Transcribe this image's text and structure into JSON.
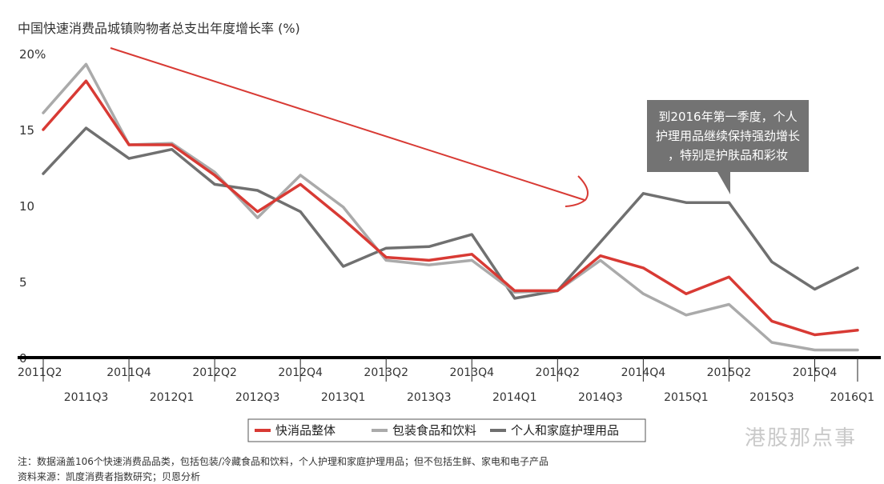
{
  "chart_data": {
    "type": "line",
    "title": "中国快速消费品城镇购物者总支出年度增长率 (%)",
    "categories": [
      "2011Q2",
      "2011Q3",
      "2011Q4",
      "2012Q1",
      "2012Q2",
      "2012Q3",
      "2012Q4",
      "2013Q1",
      "2013Q2",
      "2013Q3",
      "2013Q4",
      "2014Q1",
      "2014Q2",
      "2014Q3",
      "2014Q4",
      "2015Q1",
      "2015Q2",
      "2015Q3",
      "2015Q4",
      "2016Q1"
    ],
    "ylim": [
      0,
      20
    ],
    "yticks": [
      "0",
      "5",
      "10",
      "15",
      "20%"
    ],
    "series": [
      {
        "name": "快消品整体",
        "color": "#d83a34",
        "values": [
          15.0,
          18.2,
          14.0,
          14.0,
          12.0,
          9.6,
          11.4,
          9.1,
          6.6,
          6.4,
          6.8,
          4.4,
          4.4,
          6.7,
          5.9,
          4.2,
          5.3,
          2.4,
          1.5,
          1.8
        ]
      },
      {
        "name": "包装食品和饮料",
        "color": "#aaaaaa",
        "values": [
          16.1,
          19.3,
          14.0,
          14.1,
          12.2,
          9.2,
          12.0,
          9.9,
          6.4,
          6.1,
          6.4,
          4.3,
          4.4,
          6.4,
          4.2,
          2.8,
          3.5,
          1.0,
          0.5,
          0.5
        ]
      },
      {
        "name": "个人和家庭护理用品",
        "color": "#707070",
        "values": [
          12.1,
          15.1,
          13.1,
          13.7,
          11.4,
          11.0,
          9.6,
          6.0,
          7.2,
          7.3,
          8.1,
          3.9,
          4.4,
          7.6,
          10.8,
          10.2,
          10.2,
          6.3,
          4.5,
          5.9
        ]
      }
    ],
    "annotation": "到2016年第一季度，个人护理用品继续保持强劲增长，特别是护肤品和彩妆",
    "legend_position": "bottom-center"
  },
  "notes": {
    "line1": "注：数据涵盖106个快速消费品品类，包括包装/冷藏食品和饮料，个人护理和家庭护理用品；但不包括生鲜、家电和电子产品",
    "line2": "资料来源：凯度消费者指数研究；贝恩分析"
  },
  "watermark": "港股那点事",
  "colors": {
    "arrow": "#d83a34",
    "callout_bg": "#737373",
    "axis": "#000000"
  }
}
